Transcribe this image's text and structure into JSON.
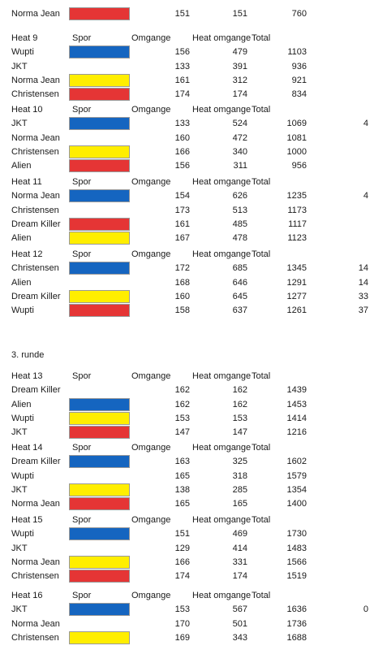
{
  "colors": {
    "blue": "#1565c0",
    "yellow": "#ffee00",
    "red": "#e53535"
  },
  "top_row": {
    "name": "Norma Jean",
    "lane": "red",
    "omgange": "151",
    "heat_omgange": "151",
    "total": "760",
    "extra": ""
  },
  "round_label": "3. runde",
  "heats": [
    {
      "title": "Heat 9",
      "spor": "Spor",
      "omgange": "Omgange",
      "heat_omgange": "Heat omgange",
      "total": "Total",
      "rows": [
        {
          "name": "Wupti",
          "lane": "blue",
          "omgange": "156",
          "heat_omgange": "479",
          "total": "1103",
          "extra": ""
        },
        {
          "name": "JKT",
          "lane": "",
          "omgange": "133",
          "heat_omgange": "391",
          "total": "936",
          "extra": ""
        },
        {
          "name": "Norma Jean",
          "lane": "yellow",
          "omgange": "161",
          "heat_omgange": "312",
          "total": "921",
          "extra": ""
        },
        {
          "name": "Christensen",
          "lane": "red",
          "omgange": "174",
          "heat_omgange": "174",
          "total": "834",
          "extra": ""
        }
      ]
    },
    {
      "title": "Heat 10",
      "spor": "Spor",
      "omgange": "Omgange",
      "heat_omgange": "Heat omgange",
      "total": "Total",
      "rows": [
        {
          "name": "JKT",
          "lane": "blue",
          "omgange": "133",
          "heat_omgange": "524",
          "total": "1069",
          "extra": "4"
        },
        {
          "name": "Norma Jean",
          "lane": "",
          "omgange": "160",
          "heat_omgange": "472",
          "total": "1081",
          "extra": ""
        },
        {
          "name": "Christensen",
          "lane": "yellow",
          "omgange": "166",
          "heat_omgange": "340",
          "total": "1000",
          "extra": ""
        },
        {
          "name": "Alien",
          "lane": "red",
          "omgange": "156",
          "heat_omgange": "311",
          "total": "956",
          "extra": ""
        }
      ]
    },
    {
      "title": "Heat 11",
      "spor": "Spor",
      "omgange": "Omgange",
      "heat_omgange": "Heat omgange",
      "total": "Total",
      "rows": [
        {
          "name": "Norma Jean",
          "lane": "blue",
          "omgange": "154",
          "heat_omgange": "626",
          "total": "1235",
          "extra": "4"
        },
        {
          "name": "Christensen",
          "lane": "",
          "omgange": "173",
          "heat_omgange": "513",
          "total": "1173",
          "extra": ""
        },
        {
          "name": "Dream Killer",
          "lane": "red",
          "omgange": "161",
          "heat_omgange": "485",
          "total": "1117",
          "extra": ""
        },
        {
          "name": "Alien",
          "lane": "yellow",
          "omgange": "167",
          "heat_omgange": "478",
          "total": "1123",
          "extra": ""
        }
      ]
    },
    {
      "title": "Heat 12",
      "spor": "Spor",
      "omgange": "Omgange",
      "heat_omgange": "Heat omgange",
      "total": "Total",
      "rows": [
        {
          "name": "Christensen",
          "lane": "blue",
          "omgange": "172",
          "heat_omgange": "685",
          "total": "1345",
          "extra": "14"
        },
        {
          "name": "Alien",
          "lane": "",
          "omgange": "168",
          "heat_omgange": "646",
          "total": "1291",
          "extra": "14"
        },
        {
          "name": "Dream Killer",
          "lane": "yellow",
          "omgange": "160",
          "heat_omgange": "645",
          "total": "1277",
          "extra": "33"
        },
        {
          "name": "Wupti",
          "lane": "red",
          "omgange": "158",
          "heat_omgange": "637",
          "total": "1261",
          "extra": "37"
        }
      ]
    },
    {
      "title": "Heat 13",
      "spor": "Spor",
      "omgange": "Omgange",
      "heat_omgange": "Heat omgange",
      "total": "Total",
      "rows": [
        {
          "name": "Dream Killer",
          "lane": "",
          "omgange": "162",
          "heat_omgange": "162",
          "total": "1439",
          "extra": ""
        },
        {
          "name": "Alien",
          "lane": "blue",
          "omgange": "162",
          "heat_omgange": "162",
          "total": "1453",
          "extra": ""
        },
        {
          "name": "Wupti",
          "lane": "yellow",
          "omgange": "153",
          "heat_omgange": "153",
          "total": "1414",
          "extra": ""
        },
        {
          "name": "JKT",
          "lane": "red",
          "omgange": "147",
          "heat_omgange": "147",
          "total": "1216",
          "extra": ""
        }
      ]
    },
    {
      "title": "Heat 14",
      "spor": "Spor",
      "omgange": "Omgange",
      "heat_omgange": "Heat omgange",
      "total": "Total",
      "rows": [
        {
          "name": "Dream Killer",
          "lane": "blue",
          "omgange": "163",
          "heat_omgange": "325",
          "total": "1602",
          "extra": ""
        },
        {
          "name": "Wupti",
          "lane": "",
          "omgange": "165",
          "heat_omgange": "318",
          "total": "1579",
          "extra": ""
        },
        {
          "name": "JKT",
          "lane": "yellow",
          "omgange": "138",
          "heat_omgange": "285",
          "total": "1354",
          "extra": ""
        },
        {
          "name": "Norma Jean",
          "lane": "red",
          "omgange": "165",
          "heat_omgange": "165",
          "total": "1400",
          "extra": ""
        }
      ]
    },
    {
      "title": "Heat 15",
      "spor": "Spor",
      "omgange": "Omgange",
      "heat_omgange": "Heat omgange",
      "total": "Total",
      "rows": [
        {
          "name": "Wupti",
          "lane": "blue",
          "omgange": "151",
          "heat_omgange": "469",
          "total": "1730",
          "extra": ""
        },
        {
          "name": "JKT",
          "lane": "",
          "omgange": "129",
          "heat_omgange": "414",
          "total": "1483",
          "extra": ""
        },
        {
          "name": "Norma Jean",
          "lane": "yellow",
          "omgange": "166",
          "heat_omgange": "331",
          "total": "1566",
          "extra": ""
        },
        {
          "name": "Christensen",
          "lane": "red",
          "omgange": "174",
          "heat_omgange": "174",
          "total": "1519",
          "extra": ""
        }
      ]
    },
    {
      "title": "Heat 16",
      "spor": "Spor",
      "omgange": "Omgange",
      "heat_omgange": "Heat omgange",
      "total": "Total",
      "rows": [
        {
          "name": "JKT",
          "lane": "blue",
          "omgange": "153",
          "heat_omgange": "567",
          "total": "1636",
          "extra": "0"
        },
        {
          "name": "Norma Jean",
          "lane": "",
          "omgange": "170",
          "heat_omgange": "501",
          "total": "1736",
          "extra": ""
        },
        {
          "name": "Christensen",
          "lane": "yellow",
          "omgange": "169",
          "heat_omgange": "343",
          "total": "1688",
          "extra": ""
        }
      ]
    }
  ]
}
